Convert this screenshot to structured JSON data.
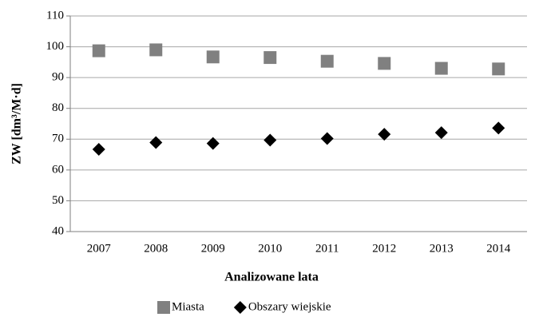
{
  "chart_data": {
    "type": "scatter",
    "x_label": "Analizowane lata",
    "y_label": "ZW [dm³/M·d]",
    "categories": [
      "2007",
      "2008",
      "2009",
      "2010",
      "2011",
      "2012",
      "2013",
      "2014"
    ],
    "series": [
      {
        "name": "Miasta",
        "color": "#808080",
        "marker": "square",
        "values": [
          98.7,
          99.0,
          96.7,
          96.5,
          95.3,
          94.6,
          93.0,
          92.8
        ]
      },
      {
        "name": "Obszary wiejskie",
        "color": "#000000",
        "marker": "diamond",
        "values": [
          66.7,
          68.9,
          68.6,
          69.7,
          70.2,
          71.6,
          72.1,
          73.6
        ]
      }
    ],
    "ylim": [
      40,
      110
    ],
    "yticks": [
      40,
      50,
      60,
      70,
      80,
      90,
      100,
      110
    ],
    "grid": true,
    "legend": "bottom"
  }
}
